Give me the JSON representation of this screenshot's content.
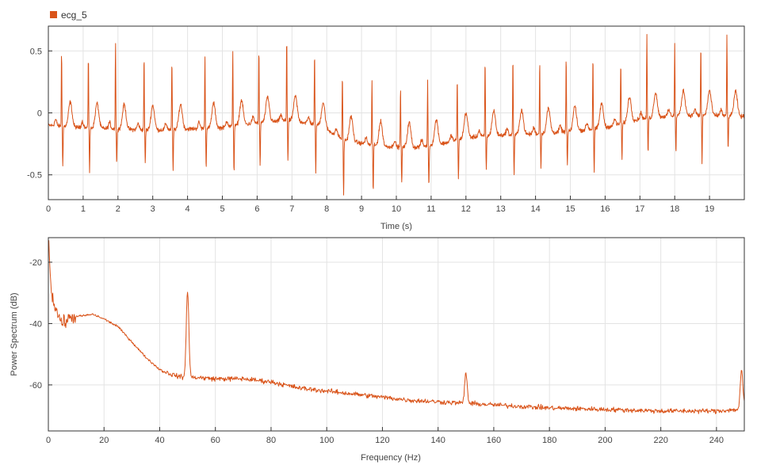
{
  "legend": {
    "series_name": "ecg_5",
    "color": "#d95319"
  },
  "chart_data": [
    {
      "type": "line",
      "title": "",
      "xlabel": "Time (s)",
      "ylabel": "",
      "xlim": [
        0,
        20
      ],
      "ylim": [
        -0.7,
        0.7
      ],
      "xticks": [
        0,
        1,
        2,
        3,
        4,
        5,
        6,
        7,
        8,
        9,
        10,
        11,
        12,
        13,
        14,
        15,
        16,
        17,
        18,
        19
      ],
      "yticks": [
        -0.5,
        0,
        0.5
      ],
      "xtick_labels": [
        "0",
        "1",
        "2",
        "3",
        "4",
        "5",
        "6",
        "7",
        "8",
        "9",
        "10",
        "11",
        "12",
        "13",
        "14",
        "15",
        "16",
        "17",
        "18",
        "19"
      ],
      "ytick_labels": [
        "-0.5",
        "0",
        "0.5"
      ],
      "grid": true,
      "legend_position": "top-left",
      "series": [
        {
          "name": "ecg_5",
          "color": "#d95319",
          "baseline": {
            "t": [
              0,
              1,
              2,
              3,
              4,
              5,
              6,
              7,
              7.8,
              8.5,
              9.5,
              10.5,
              11.3,
              12,
              13,
              14,
              15,
              16,
              17,
              18,
              19,
              20
            ],
            "v": [
              -0.1,
              -0.12,
              -0.13,
              -0.14,
              -0.13,
              -0.12,
              -0.08,
              -0.06,
              -0.1,
              -0.22,
              -0.27,
              -0.28,
              -0.25,
              -0.2,
              -0.18,
              -0.17,
              -0.15,
              -0.12,
              -0.05,
              -0.02,
              -0.02,
              -0.03
            ]
          },
          "beats": {
            "t": [
              0.38,
              1.15,
              1.93,
              2.75,
              3.55,
              4.5,
              5.3,
              6.05,
              6.85,
              7.65,
              8.45,
              9.3,
              10.12,
              10.9,
              11.75,
              12.55,
              13.35,
              14.12,
              14.88,
              15.65,
              16.45,
              17.2,
              18.0,
              18.75,
              19.5
            ],
            "r_peak": [
              0.49,
              0.47,
              0.56,
              0.46,
              0.43,
              0.46,
              0.49,
              0.51,
              0.61,
              0.48,
              0.3,
              0.25,
              0.22,
              0.26,
              0.29,
              0.43,
              0.45,
              0.42,
              0.46,
              0.46,
              0.41,
              0.62,
              0.57,
              0.54,
              0.62
            ],
            "s_trough": [
              -0.42,
              -0.48,
              -0.41,
              -0.4,
              -0.48,
              -0.44,
              -0.48,
              -0.43,
              -0.38,
              -0.47,
              -0.66,
              -0.63,
              -0.57,
              -0.6,
              -0.54,
              -0.46,
              -0.49,
              -0.44,
              -0.42,
              -0.48,
              -0.38,
              -0.32,
              -0.33,
              -0.4,
              -0.3
            ]
          },
          "noise_amplitude": 0.025
        }
      ]
    },
    {
      "type": "line",
      "title": "",
      "xlabel": "Frequency (Hz)",
      "ylabel": "Power Spectrum (dB)",
      "xlim": [
        0,
        250
      ],
      "ylim": [
        -75,
        -12
      ],
      "xticks": [
        0,
        20,
        40,
        60,
        80,
        100,
        120,
        140,
        160,
        180,
        200,
        220,
        240
      ],
      "yticks": [
        -60,
        -40,
        -20
      ],
      "xtick_labels": [
        "0",
        "20",
        "40",
        "60",
        "80",
        "100",
        "120",
        "140",
        "160",
        "180",
        "200",
        "220",
        "240"
      ],
      "ytick_labels": [
        "-60",
        "-40",
        "-20"
      ],
      "grid": true,
      "series": [
        {
          "name": "ecg_5",
          "color": "#d95319",
          "envelope": {
            "f": [
              0,
              1,
              3,
              5,
              8,
              12,
              16,
              20,
              25,
              30,
              35,
              40,
              44,
              48,
              52,
              60,
              70,
              80,
              90,
              100,
              110,
              120,
              130,
              140,
              160,
              180,
              200,
              220,
              240,
              248,
              250
            ],
            "p": [
              -16,
              -30,
              -36,
              -40,
              -38,
              -37.5,
              -37,
              -38.5,
              -41,
              -46,
              -51,
              -55,
              -56.5,
              -57.5,
              -57.5,
              -58,
              -58,
              -59,
              -61,
              -62,
              -63,
              -64,
              -65,
              -65.5,
              -66.5,
              -67.5,
              -68,
              -68.5,
              -68.5,
              -68,
              -67
            ]
          },
          "peaks": [
            {
              "f": 0.2,
              "p": -15
            },
            {
              "f": 50,
              "p": -29
            },
            {
              "f": 150,
              "p": -56
            },
            {
              "f": 249,
              "p": -55
            }
          ],
          "noise_amplitude": 0.9
        }
      ]
    }
  ]
}
